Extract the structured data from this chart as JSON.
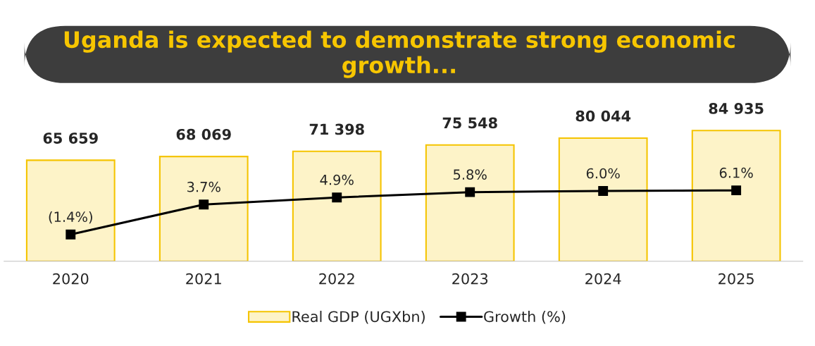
{
  "chart_data": {
    "type": "bar",
    "title": "Uganda is expected to demonstrate strong economic growth...",
    "categories": [
      "2020",
      "2021",
      "2022",
      "2023",
      "2024",
      "2025"
    ],
    "series": [
      {
        "name": "Real GDP (UGXbn)",
        "color": "#fdf3c8",
        "values": [
          65659,
          68069,
          71398,
          75548,
          80044,
          84935
        ],
        "value_labels": [
          "65 659",
          "68 069",
          "71 398",
          "75 548",
          "80 044",
          "84 935"
        ]
      },
      {
        "name": "Growth (%)",
        "type": "line",
        "axis": "y2",
        "color": "#000000",
        "marker": "square",
        "values": [
          -1.4,
          3.7,
          4.9,
          5.8,
          6.0,
          6.1
        ],
        "value_labels": [
          "(1.4%)",
          "3.7%",
          "4.9%",
          "5.8%",
          "6.0%",
          "6.1%"
        ]
      }
    ],
    "tick_labels": "x",
    "grid": false,
    "legend": "bottom"
  }
}
